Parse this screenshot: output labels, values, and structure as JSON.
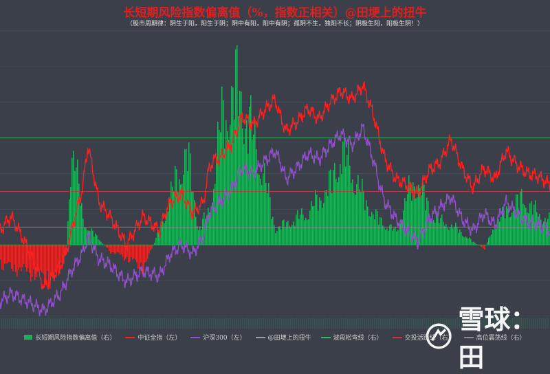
{
  "watermark": {
    "text": "雪球：田",
    "icon": "snowball-logo-icon"
  },
  "chart_data": {
    "type": "line",
    "title": "长短期风险指数偏离值（%，指数正相关）@田埂上的扭牛",
    "subtitle": "（股市周期律：阴生于阳，阳生于阴；阴中有阳，阳中有阴；孤阴不生，独阳不长；阴极生阳，阳极生阴！）",
    "x_range": [
      0,
      1000
    ],
    "y_left_range": [
      0,
      100
    ],
    "y_right_range": [
      -40,
      120
    ],
    "grid": true,
    "legend_position": "bottom",
    "series": [
      {
        "name": "长短期风险指数偏离值（右）",
        "type": "bar",
        "axis": "right",
        "color": "#1fb15a",
        "x": [
          0,
          50,
          100,
          120,
          130,
          150,
          170,
          200,
          230,
          260,
          290,
          320,
          340,
          360,
          380,
          400,
          430,
          460,
          480,
          500,
          530,
          560,
          580,
          600,
          620,
          640,
          660,
          680,
          700,
          720,
          740,
          760,
          780,
          800,
          830,
          860,
          880,
          900,
          920,
          950,
          980,
          1000
        ],
        "y": [
          -15,
          -20,
          -28,
          -5,
          80,
          18,
          8,
          -5,
          -10,
          -18,
          12,
          50,
          68,
          12,
          25,
          90,
          118,
          80,
          50,
          12,
          18,
          25,
          35,
          45,
          70,
          55,
          35,
          22,
          15,
          10,
          38,
          48,
          25,
          18,
          12,
          2,
          -3,
          16,
          25,
          35,
          22,
          18
        ]
      },
      {
        "name": "中证全指（左）",
        "type": "line",
        "axis": "left",
        "color": "#ff2020",
        "x": [
          0,
          20,
          40,
          60,
          80,
          100,
          110,
          120,
          130,
          150,
          160,
          180,
          200,
          230,
          260,
          290,
          300,
          310,
          330,
          350,
          370,
          380,
          390,
          400,
          410,
          420,
          440,
          460,
          480,
          500,
          510,
          520,
          540,
          560,
          580,
          600,
          620,
          640,
          660,
          680,
          690,
          700,
          720,
          740,
          750,
          760,
          780,
          800,
          820,
          840,
          860,
          880,
          900,
          920,
          940,
          960,
          980,
          1000
        ],
        "y": [
          30,
          35,
          28,
          20,
          10,
          15,
          18,
          22,
          30,
          45,
          60,
          40,
          35,
          25,
          35,
          30,
          36,
          40,
          43,
          36,
          40,
          52,
          55,
          55,
          58,
          60,
          70,
          67,
          72,
          76,
          70,
          65,
          68,
          73,
          69,
          75,
          79,
          76,
          81,
          70,
          62,
          55,
          48,
          46,
          44,
          43,
          51,
          54,
          62,
          52,
          45,
          52,
          48,
          58,
          53,
          50,
          49,
          46
        ]
      },
      {
        "name": "沪深300（左）",
        "type": "line",
        "axis": "left",
        "color": "#9050c8",
        "x": [
          0,
          20,
          40,
          60,
          80,
          100,
          110,
          120,
          130,
          150,
          160,
          180,
          200,
          230,
          260,
          290,
          300,
          310,
          330,
          350,
          370,
          380,
          390,
          400,
          410,
          420,
          440,
          460,
          480,
          500,
          510,
          520,
          540,
          560,
          580,
          600,
          620,
          640,
          660,
          680,
          690,
          700,
          720,
          740,
          750,
          760,
          780,
          800,
          820,
          840,
          860,
          880,
          900,
          920,
          940,
          960,
          980,
          1000
        ],
        "y": [
          5,
          8,
          6,
          4,
          2,
          6,
          8,
          12,
          16,
          22,
          28,
          20,
          18,
          12,
          16,
          14,
          18,
          22,
          25,
          22,
          28,
          36,
          38,
          40,
          42,
          44,
          52,
          50,
          54,
          58,
          54,
          48,
          52,
          57,
          55,
          60,
          64,
          60,
          66,
          54,
          46,
          40,
          34,
          30,
          28,
          26,
          34,
          38,
          42,
          34,
          30,
          36,
          32,
          40,
          36,
          33,
          32,
          30
        ]
      },
      {
        "name": "@田埂上的扭牛",
        "type": "label",
        "color": "#9aa0aa"
      },
      {
        "name": "波段松弯线（右）",
        "type": "hline",
        "axis": "right",
        "value": 60,
        "color": "#2bbf5a"
      },
      {
        "name": "交投活跃线（右）",
        "type": "hline",
        "axis": "right",
        "value": 30,
        "color": "#cc3344"
      },
      {
        "name": "高位震荡线（右）",
        "type": "hline",
        "axis": "right",
        "value": 10,
        "color": "#8a8a8a"
      }
    ]
  }
}
